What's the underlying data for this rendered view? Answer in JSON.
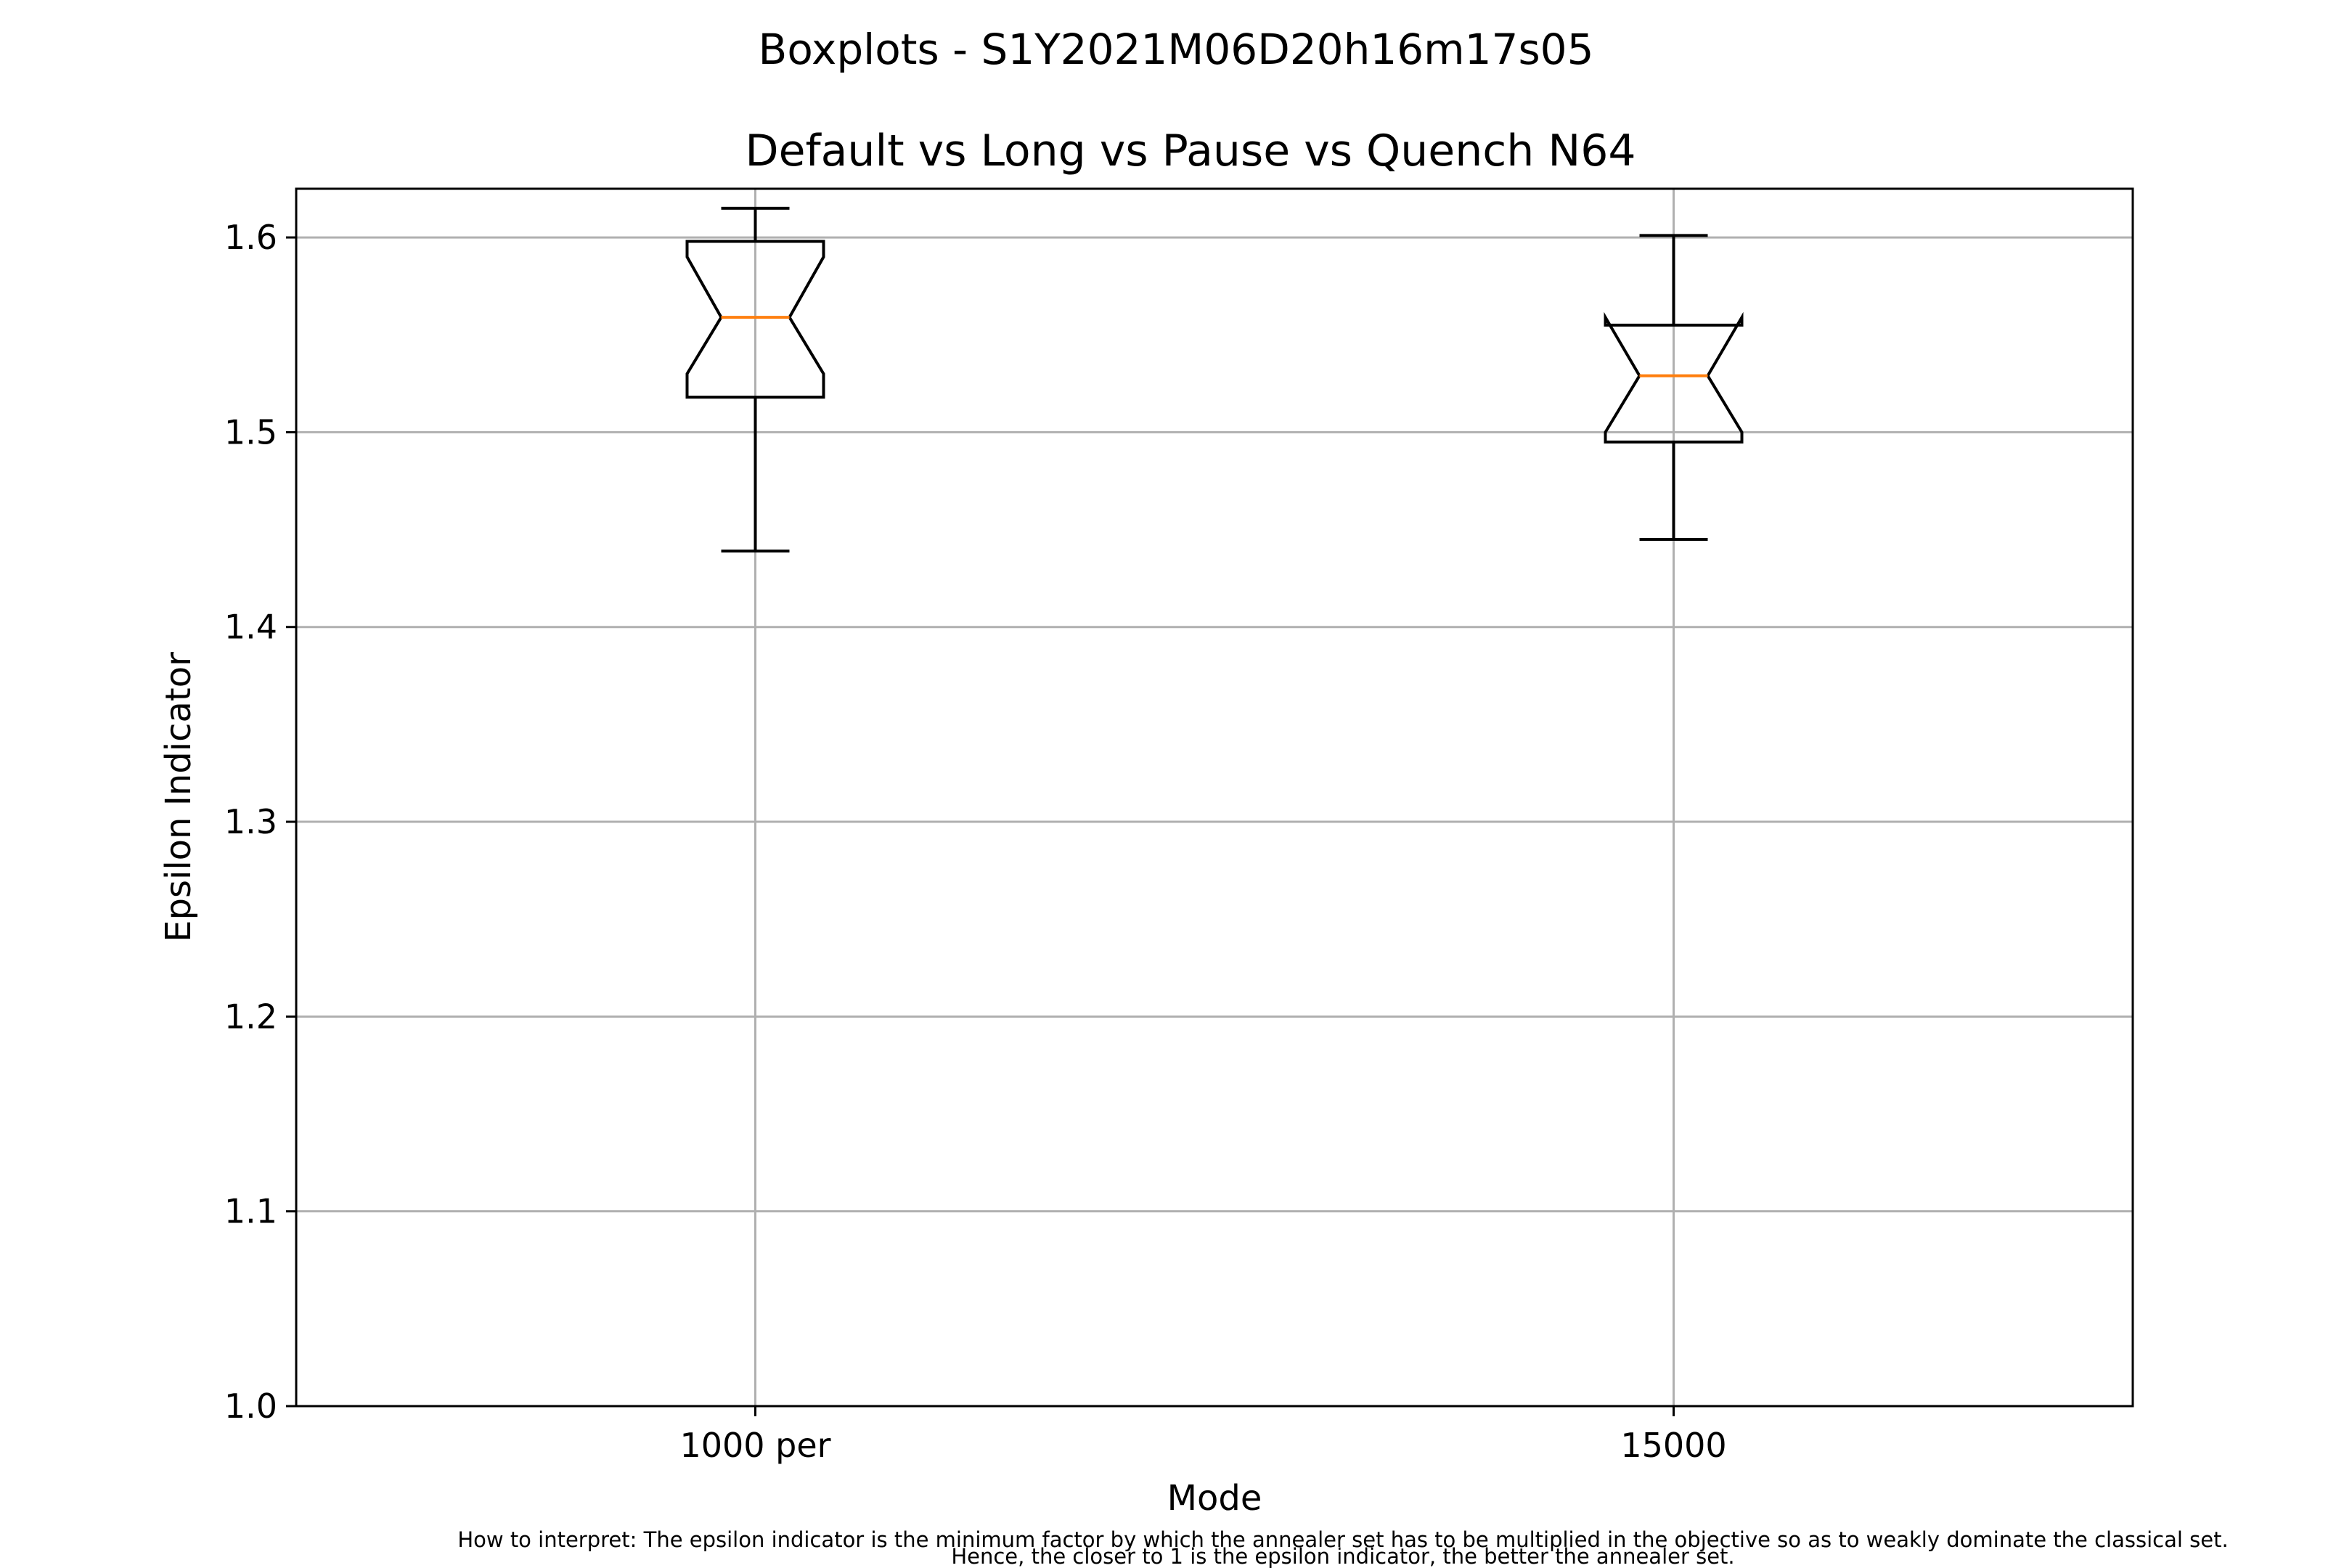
{
  "suptitle": "Boxplots - S1Y2021M06D20h16m17s05",
  "footnote": {
    "line1": "How to interpret: The epsilon indicator is the minimum factor by which the annealer set has to be multiplied in the objective so as to weakly dominate the classical set.",
    "line2": "Hence, the closer to 1 is the epsilon indicator, the better the annealer set."
  },
  "colors": {
    "box": "#000000",
    "median": "#ff7f0e",
    "grid": "#b0b0b0"
  },
  "chart_data": {
    "type": "boxplot",
    "notched": true,
    "title": "Default vs Long vs Pause vs Quench N64",
    "xlabel": "Mode",
    "ylabel": "Epsilon Indicator",
    "ylim": [
      1.0,
      1.625
    ],
    "yticks": [
      "1.0",
      "1.1",
      "1.2",
      "1.3",
      "1.4",
      "1.5",
      "1.6"
    ],
    "grid": true,
    "categories": [
      "1000 per",
      "15000"
    ],
    "boxes": [
      {
        "category": "1000 per",
        "whisker_low": 1.439,
        "q1": 1.518,
        "notch_low": 1.53,
        "median": 1.559,
        "notch_high": 1.59,
        "q3": 1.598,
        "whisker_high": 1.615
      },
      {
        "category": "15000",
        "whisker_low": 1.445,
        "q1": 1.495,
        "notch_low": 1.5,
        "median": 1.529,
        "notch_high": 1.559,
        "q3": 1.555,
        "whisker_high": 1.601
      }
    ]
  }
}
